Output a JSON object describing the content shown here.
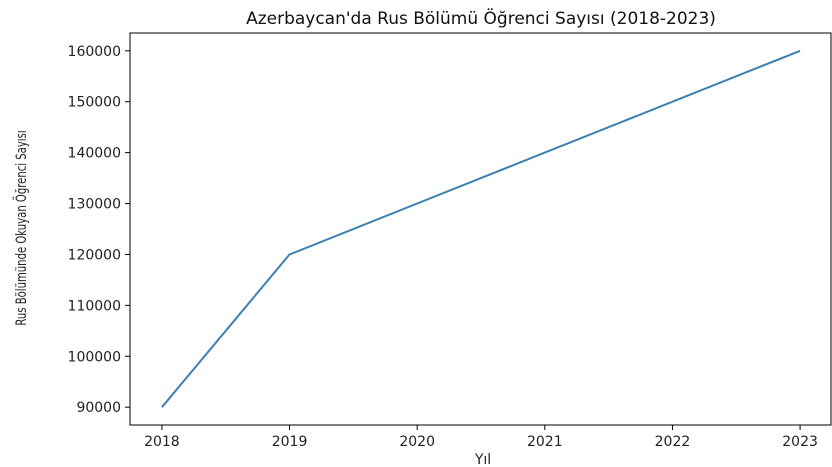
{
  "chart_data": {
    "type": "line",
    "title": "Azerbaycan'da Rus Bölümü Öğrenci Sayısı (2018-2023)",
    "xlabel": "Yıl",
    "ylabel": "Rus Bölümünde Okuyan Öğrenci Sayısı",
    "x": [
      2018,
      2019,
      2020,
      2021,
      2022,
      2023
    ],
    "series": [
      {
        "values": [
          90000,
          120000,
          130000,
          140000,
          150000,
          160000
        ],
        "color": "#3a80b0"
      }
    ],
    "xticks": [
      "2018",
      "2019",
      "2020",
      "2021",
      "2022",
      "2023"
    ],
    "yticks": [
      90000,
      100000,
      110000,
      120000,
      130000,
      140000,
      150000,
      160000
    ],
    "ytick_labels": [
      "90000",
      "100000",
      "110000",
      "120000",
      "130000",
      "140000",
      "150000",
      "160000"
    ],
    "xlim": [
      2017.75,
      2023.25
    ],
    "ylim": [
      86500,
      163500
    ],
    "grid": false,
    "legend": "none"
  }
}
